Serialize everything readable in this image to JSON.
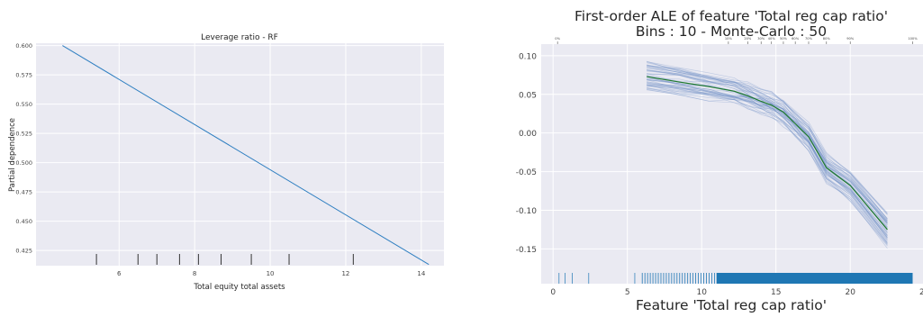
{
  "theme": {
    "panel_bg": "#eaeaf2",
    "grid": "#ffffff",
    "line_blue": "#2f7fc1",
    "mc_line": "#6f8fc7",
    "ale_green": "#1f7a2e",
    "rug_blue": "#1f77b4",
    "text": "#262626",
    "tick_text": "#444444"
  },
  "chart_data": [
    {
      "type": "line",
      "title": "Leverage ratio - RF",
      "xlabel": "Total equity total assets",
      "ylabel": "Partial dependence",
      "xlim": [
        3.8,
        14.6
      ],
      "ylim": [
        0.412,
        0.602
      ],
      "xticks": [
        6,
        8,
        10,
        12,
        14
      ],
      "yticks": [
        0.425,
        0.45,
        0.475,
        0.5,
        0.525,
        0.55,
        0.575,
        0.6
      ],
      "ytick_labels": [
        "0.425",
        "0.450",
        "0.475",
        "0.500",
        "0.525",
        "0.550",
        "0.575",
        "0.600"
      ],
      "grid": true,
      "series": [
        {
          "x": [
            4.5,
            14.2
          ],
          "y": [
            0.6,
            0.413
          ]
        }
      ],
      "deciles": [
        5.4,
        6.5,
        7.0,
        7.6,
        8.1,
        8.7,
        9.5,
        10.5,
        12.2
      ]
    },
    {
      "type": "line",
      "title": "First-order ALE of feature 'Total reg cap ratio'",
      "subtitle": "Bins : 10 - Monte-Carlo : 50",
      "xlabel": "Feature 'Total reg cap ratio'",
      "ylabel": "",
      "xlim": [
        -0.8,
        25.2
      ],
      "ylim": [
        -0.195,
        0.115
      ],
      "xticks": [
        0,
        5,
        10,
        15,
        20,
        25
      ],
      "yticks": [
        -0.15,
        -0.1,
        -0.05,
        0.0,
        0.05,
        0.1
      ],
      "ytick_labels": [
        "-0.15",
        "-0.10",
        "-0.05",
        "0.00",
        "0.05",
        "0.10"
      ],
      "grid": true,
      "quantile_axis": {
        "positions": [
          0.3,
          11.8,
          13.1,
          14.0,
          14.7,
          15.5,
          16.3,
          17.2,
          18.4,
          20.0,
          24.2
        ],
        "labels": [
          "0%",
          "10%",
          "20%",
          "30%",
          "40%",
          "50%",
          "60%",
          "70%",
          "80%",
          "90%",
          "100%"
        ]
      },
      "series": [
        {
          "x": [
            6.3,
            8.5,
            10.5,
            12.2,
            13.1,
            14.0,
            14.7,
            15.5,
            16.3,
            17.2,
            18.4,
            20.0,
            22.5
          ],
          "y": [
            0.073,
            0.066,
            0.06,
            0.054,
            0.048,
            0.041,
            0.036,
            0.027,
            0.012,
            -0.005,
            -0.045,
            -0.068,
            -0.125
          ]
        }
      ],
      "monte_carlo_runs": 50,
      "rug": {
        "sparse": [
          0.4,
          0.8,
          1.3,
          2.4,
          5.5
        ],
        "dense_start": 6.0,
        "dense_end": 24.2
      }
    }
  ]
}
